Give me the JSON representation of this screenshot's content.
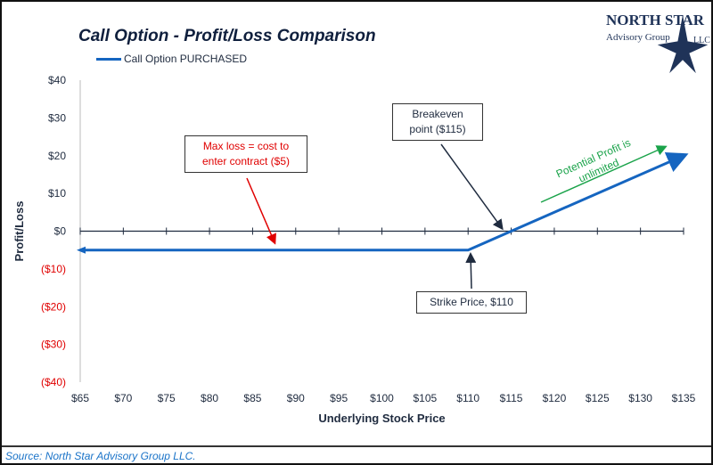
{
  "logo": {
    "line1": "North Star",
    "line2": "Advisory Group",
    "line3": "LLC"
  },
  "source": "Source: North Star Advisory Group LLC.",
  "annotations": {
    "max_loss": "Max loss = cost to enter contract ($5)",
    "breakeven": "Breakeven point ($115)",
    "strike": "Strike Price, $110",
    "profit": "Potential Profit is unlimited"
  },
  "colors": {
    "series": "#1565c0",
    "negative": "#e00000",
    "loss_note": "#e00000",
    "profit_note": "#1aa34a"
  },
  "chart_data": {
    "type": "line",
    "title": "Call Option - Profit/Loss Comparison",
    "xlabel": "Underlying Stock Price",
    "ylabel": "Profit/Loss",
    "legend_placement": "top-left",
    "xlim": [
      65,
      135
    ],
    "ylim": [
      -40,
      40
    ],
    "grid": false,
    "x_ticks": [
      "$65",
      "$70",
      "$75",
      "$80",
      "$85",
      "$90",
      "$95",
      "$100",
      "$105",
      "$110",
      "$115",
      "$120",
      "$125",
      "$130",
      "$135"
    ],
    "y_ticks": [
      "$40",
      "$30",
      "$20",
      "$10",
      "$0",
      "($10)",
      "($20)",
      "($30)",
      "($40)"
    ],
    "series": [
      {
        "name": "Call Option PURCHASED",
        "x": [
          65,
          110,
          135
        ],
        "y": [
          -5,
          -5,
          20
        ]
      }
    ]
  }
}
